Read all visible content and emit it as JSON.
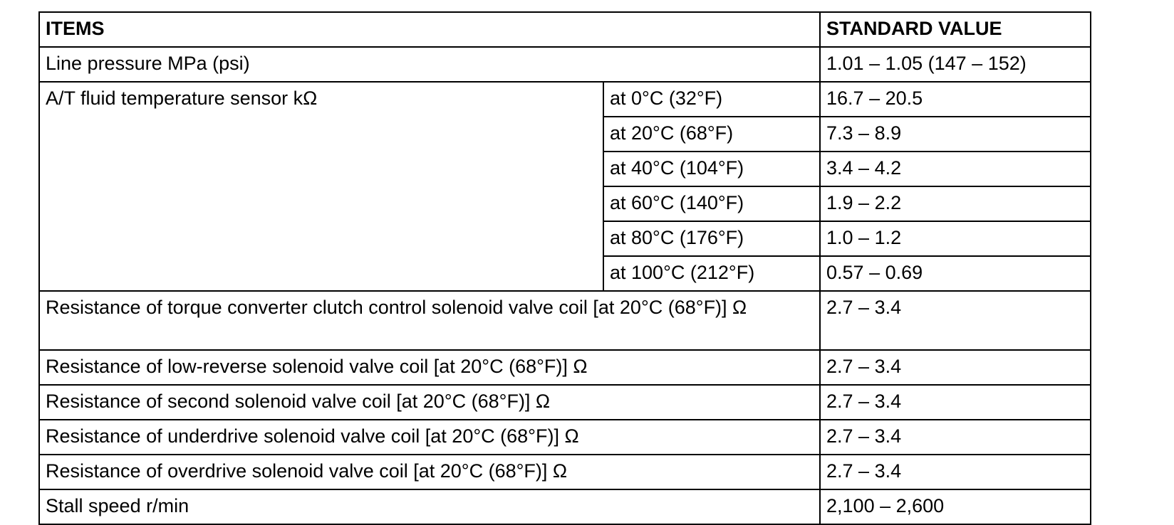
{
  "table": {
    "header": {
      "item": "ITEMS",
      "value": "STANDARD VALUE"
    },
    "rows": [
      {
        "item": "Line pressure MPa (psi)",
        "value": "1.01 – 1.05 (147 – 152)"
      },
      {
        "item": "A/T fluid temperature sensor kΩ",
        "conditions": [
          {
            "condition": "at 0°C (32°F)",
            "value": "16.7 – 20.5"
          },
          {
            "condition": "at 20°C (68°F)",
            "value": "7.3 – 8.9"
          },
          {
            "condition": "at 40°C (104°F)",
            "value": "3.4 – 4.2"
          },
          {
            "condition": "at 60°C (140°F)",
            "value": "1.9 – 2.2"
          },
          {
            "condition": "at 80°C (176°F)",
            "value": "1.0 – 1.2"
          },
          {
            "condition": "at 100°C (212°F)",
            "value": "0.57 – 0.69"
          }
        ]
      },
      {
        "item": "Resistance of torque converter clutch control solenoid valve coil [at 20°C (68°F)] Ω",
        "value": "2.7 – 3.4"
      },
      {
        "item": "Resistance of low-reverse solenoid valve coil [at 20°C (68°F)] Ω",
        "value": "2.7 – 3.4"
      },
      {
        "item": "Resistance of second solenoid valve coil [at 20°C (68°F)] Ω",
        "value": "2.7 – 3.4"
      },
      {
        "item": "Resistance of underdrive solenoid valve coil [at 20°C (68°F)] Ω",
        "value": "2.7 – 3.4"
      },
      {
        "item": "Resistance of overdrive solenoid valve coil [at 20°C (68°F)] Ω",
        "value": "2.7 – 3.4"
      },
      {
        "item": "Stall speed r/min",
        "value": "2,100 – 2,600"
      }
    ]
  }
}
